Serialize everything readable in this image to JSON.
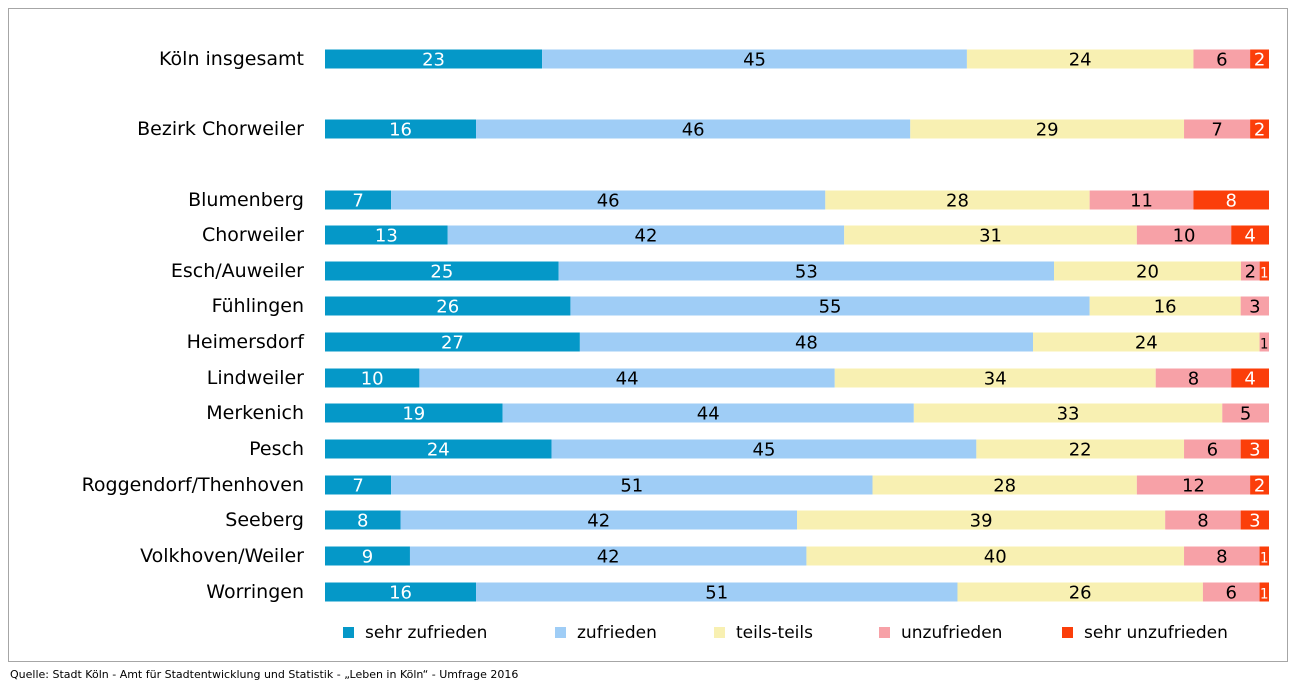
{
  "chart_data": {
    "type": "bar",
    "orientation": "horizontal",
    "stacked": true,
    "categories": [
      "Köln insgesamt",
      "Bezirk Chorweiler",
      "Blumenberg",
      "Chorweiler",
      "Esch/Auweiler",
      "Fühlingen",
      "Heimersdorf",
      "Lindweiler",
      "Merkenich",
      "Pesch",
      "Roggendorf/Thenhoven",
      "Seeberg",
      "Volkhoven/Weiler",
      "Worringen"
    ],
    "series": [
      {
        "name": "sehr zufrieden",
        "color": "#0598c8",
        "label_color": "#ffffff",
        "values": [
          23,
          16,
          7,
          13,
          25,
          26,
          27,
          10,
          19,
          24,
          7,
          8,
          9,
          16
        ]
      },
      {
        "name": "zufrieden",
        "color": "#9fcdf6",
        "label_color": "#000000",
        "values": [
          45,
          46,
          46,
          42,
          53,
          55,
          48,
          44,
          44,
          45,
          51,
          42,
          42,
          51
        ]
      },
      {
        "name": "teils-teils",
        "color": "#f8f0b2",
        "label_color": "#000000",
        "values": [
          24,
          29,
          28,
          31,
          20,
          16,
          24,
          34,
          33,
          22,
          28,
          39,
          40,
          26
        ]
      },
      {
        "name": "unzufrieden",
        "color": "#f7a1a7",
        "label_color": "#000000",
        "values": [
          6,
          7,
          11,
          10,
          2,
          3,
          1,
          8,
          5,
          6,
          12,
          8,
          8,
          6
        ]
      },
      {
        "name": "sehr unzufrieden",
        "color": "#fb3e0a",
        "label_color": "#ffffff",
        "values": [
          2,
          2,
          8,
          4,
          1,
          0,
          0,
          4,
          0,
          3,
          2,
          3,
          1,
          1
        ]
      }
    ],
    "xlim": [
      0,
      100
    ],
    "grid": false,
    "legend_position": "bottom"
  },
  "source": "Quelle: Stadt Köln - Amt für Stadtentwicklung und Statistik  - „Leben in Köln“ - Umfrage 2016"
}
